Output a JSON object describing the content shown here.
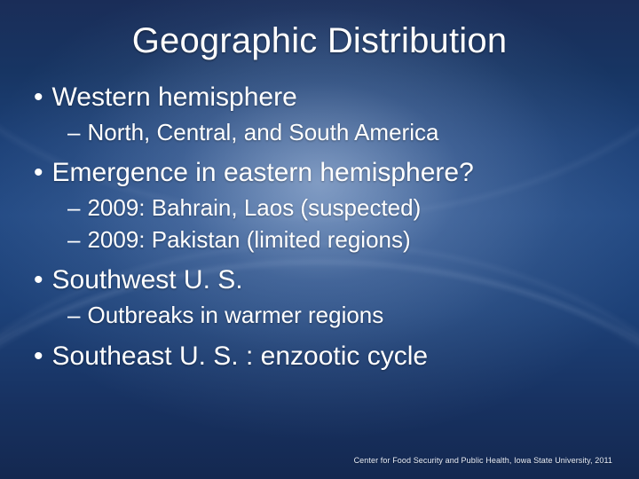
{
  "slide": {
    "title": "Geographic Distribution",
    "title_fontsize": 40,
    "title_color": "#ffffff",
    "body_color": "#ffffff",
    "lvl1_fontsize": 30,
    "lvl2_fontsize": 26,
    "background_gradient_colors": [
      "#1a2d58",
      "#234a84",
      "#142850"
    ],
    "highlight_glow_color": "#b8c9e4",
    "bullets": [
      {
        "text": "Western hemisphere",
        "sub": [
          {
            "text": "North, Central, and South America"
          }
        ]
      },
      {
        "text": "Emergence in eastern hemisphere?",
        "sub": [
          {
            "text": "2009: Bahrain, Laos (suspected)"
          },
          {
            "text": "2009: Pakistan (limited regions)"
          }
        ]
      },
      {
        "text": "Southwest U. S.",
        "sub": [
          {
            "text": "Outbreaks in warmer regions"
          }
        ]
      },
      {
        "text": "Southeast U. S. : enzootic cycle",
        "sub": []
      }
    ],
    "footer": "Center for Food Security and Public Health, Iowa State University, 2011"
  }
}
